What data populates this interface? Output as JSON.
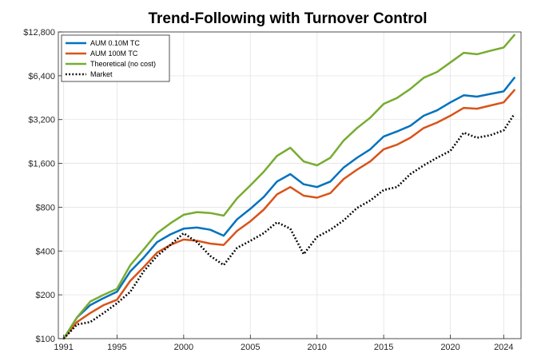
{
  "chart_data": {
    "type": "line",
    "title": "Trend-Following with Turnover Control",
    "xlabel": "",
    "ylabel": "",
    "y_scale": "log2",
    "xlim": [
      1990.6,
      2025.3
    ],
    "ylim": [
      100,
      12800
    ],
    "grid": true,
    "legend_position": "top-left",
    "x_ticks": [
      1991,
      1995,
      2000,
      2005,
      2010,
      2015,
      2020,
      2024
    ],
    "y_ticks": [
      100,
      200,
      400,
      800,
      1600,
      3200,
      6400,
      12800
    ],
    "y_tick_labels": [
      "$100",
      "$200",
      "$400",
      "$800",
      "$1,600",
      "$3,200",
      "$6,400",
      "$12,800"
    ],
    "x": [
      1991,
      1992,
      1993,
      1994,
      1995,
      1996,
      1997,
      1998,
      1999,
      2000,
      2001,
      2002,
      2003,
      2004,
      2005,
      2006,
      2007,
      2008,
      2009,
      2010,
      2011,
      2012,
      2013,
      2014,
      2015,
      2016,
      2017,
      2018,
      2019,
      2020,
      2021,
      2022,
      2023,
      2024,
      2024.8
    ],
    "series": [
      {
        "name": "AUM 0.10M TC",
        "color": "#0072BD",
        "style": "solid",
        "values": [
          100,
          140,
          170,
          190,
          210,
          290,
          360,
          460,
          520,
          570,
          580,
          560,
          510,
          660,
          780,
          940,
          1200,
          1350,
          1150,
          1100,
          1200,
          1500,
          1750,
          2000,
          2450,
          2650,
          2900,
          3400,
          3700,
          4200,
          4700,
          4600,
          4800,
          5000,
          6200
        ]
      },
      {
        "name": "AUM 100M TC",
        "color": "#D95319",
        "style": "solid",
        "values": [
          100,
          130,
          150,
          170,
          185,
          250,
          310,
          390,
          440,
          480,
          470,
          450,
          440,
          550,
          640,
          770,
          980,
          1100,
          960,
          930,
          1000,
          1250,
          1450,
          1650,
          2000,
          2150,
          2400,
          2800,
          3050,
          3400,
          3850,
          3800,
          4000,
          4200,
          5100
        ]
      },
      {
        "name": "Theoretical (no cost)",
        "color": "#77AC30",
        "style": "solid",
        "values": [
          100,
          140,
          180,
          200,
          220,
          320,
          410,
          530,
          620,
          710,
          740,
          730,
          700,
          920,
          1130,
          1400,
          1800,
          2050,
          1650,
          1550,
          1750,
          2300,
          2800,
          3300,
          4100,
          4500,
          5200,
          6200,
          6800,
          7900,
          9200,
          9000,
          9500,
          10000,
          12200
        ]
      },
      {
        "name": "Market",
        "color": "#000000",
        "style": "dotted",
        "values": [
          100,
          125,
          130,
          150,
          175,
          210,
          290,
          370,
          440,
          530,
          460,
          370,
          320,
          420,
          470,
          530,
          630,
          570,
          380,
          500,
          560,
          650,
          790,
          890,
          1050,
          1100,
          1350,
          1550,
          1750,
          1950,
          2600,
          2400,
          2500,
          2700,
          3500
        ]
      }
    ]
  }
}
